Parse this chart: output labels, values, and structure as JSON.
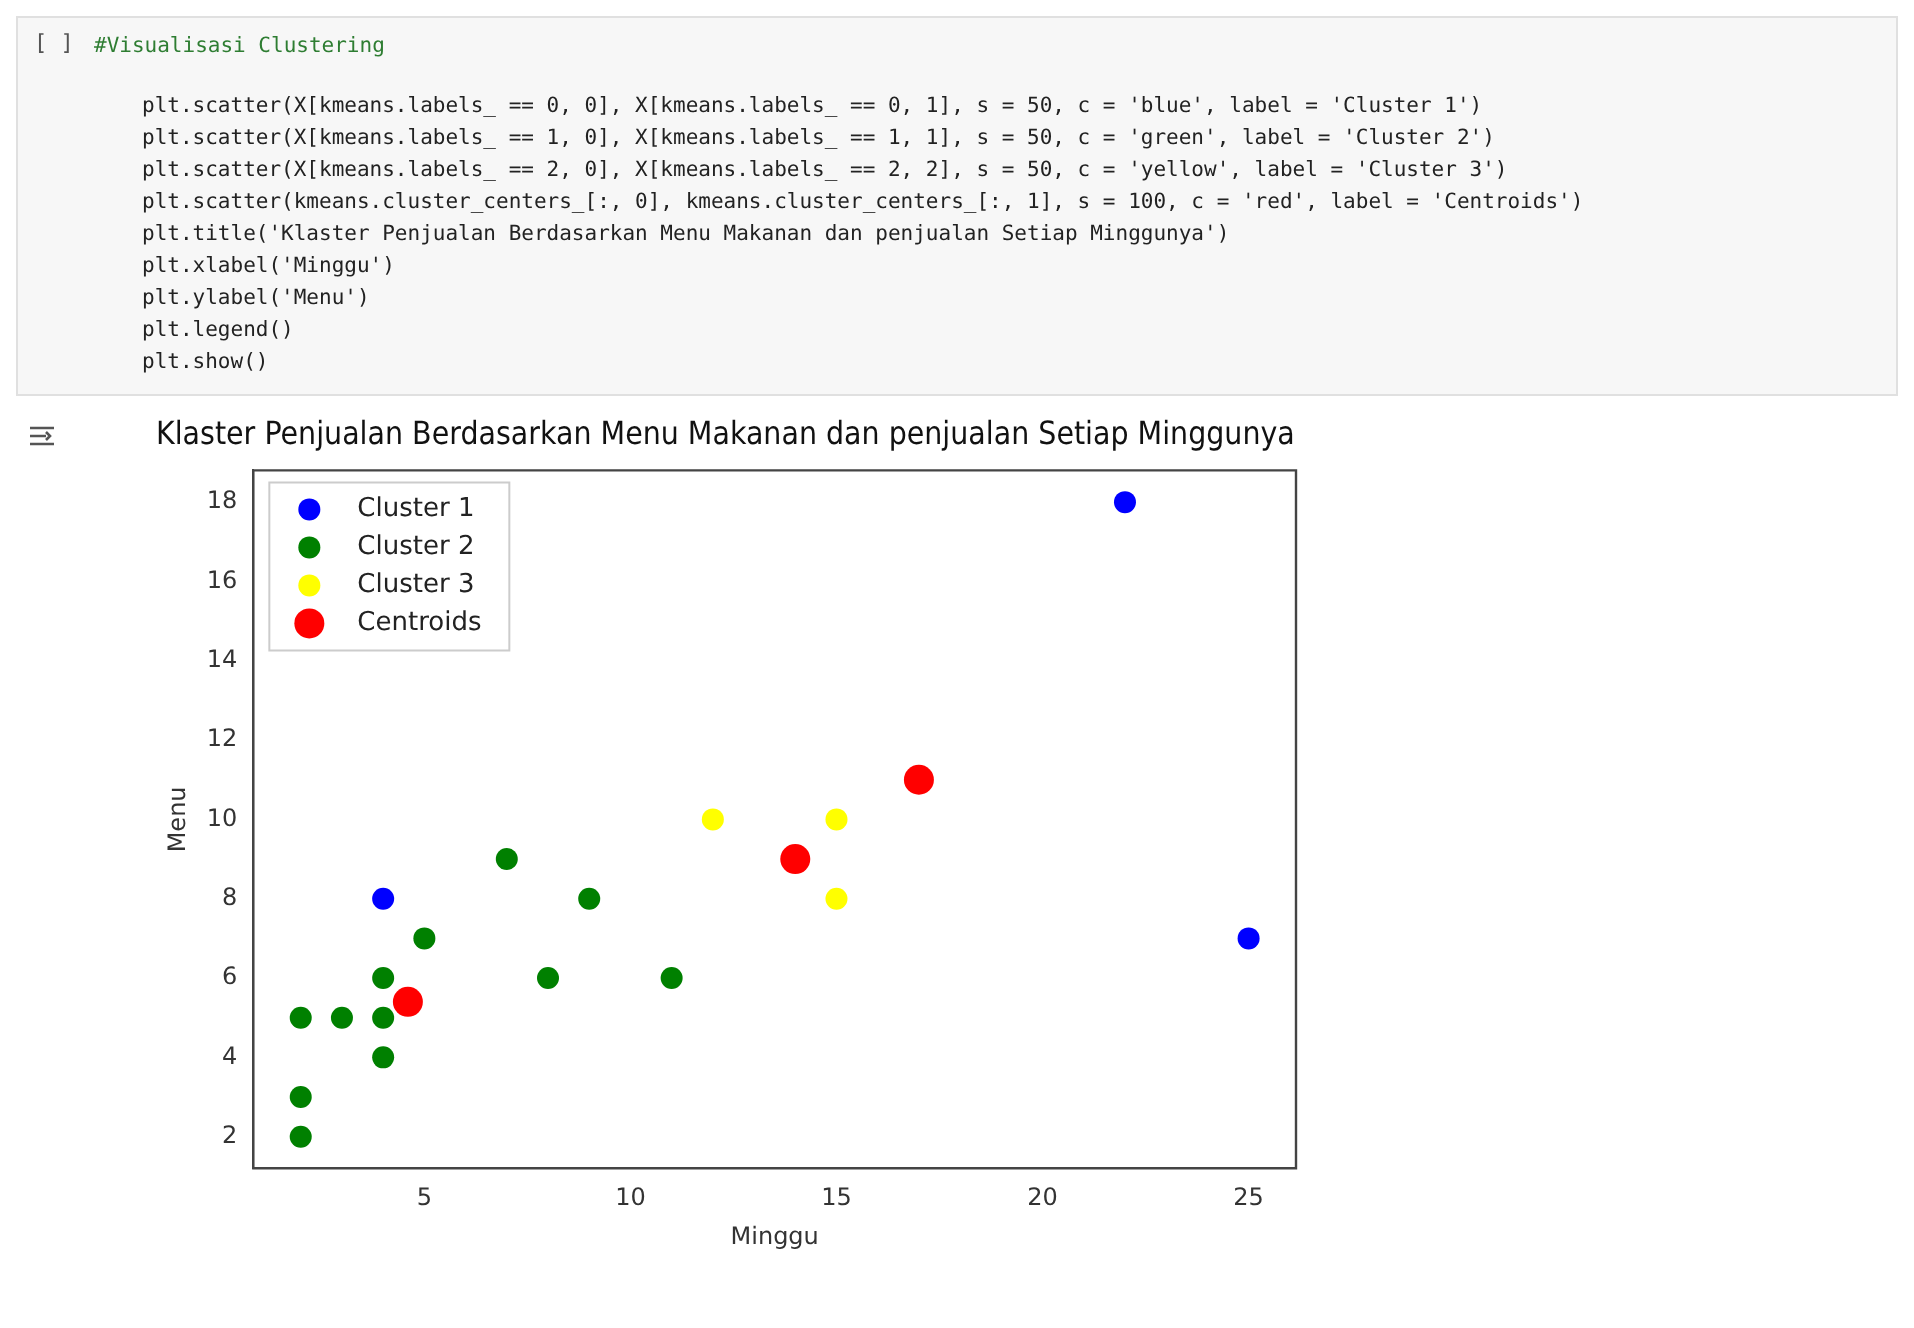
{
  "chart_data": {
    "type": "scatter",
    "title": "Klaster Penjualan Berdasarkan Menu Makanan dan penjualan Setiap Minggunya",
    "xlabel": "Minggu",
    "ylabel": "Menu",
    "annotations": [
      "[ ]",
      "#Visualisasi Clustering",
      "plt.scatter(X[kmeans.labels_ == 0, 0], X[kmeans.labels_ == 0, 1], s = 50, c = 'blue', label = 'Cluster 1')",
      "plt.scatter(X[kmeans.labels_ == 1, 0], X[kmeans.labels_ == 1, 1], s = 50, c = 'green', label = 'Cluster 2')",
      "plt.scatter(X[kmeans.labels_ == 2, 0], X[kmeans.labels_ == 2, 2], s = 50, c = 'yellow', label = 'Cluster 3')",
      "plt.scatter(kmeans.cluster_centers_[:, 0], kmeans.cluster_centers_[:, 1], s = 100, c = 'red', label = 'Centroids')",
      "plt.title('Klaster Penjualan Berdasarkan Menu Makanan dan penjualan Setiap Minggunya')",
      "plt.xlabel('Minggu')",
      "plt.ylabel('Menu')",
      "plt.legend()",
      "plt.show()"
    ],
    "series": [
      {
        "name": "Cluster 1",
        "color": "#0000ff",
        "x": [
          4,
          22,
          25
        ],
        "values": [
          8,
          18,
          7
        ]
      },
      {
        "name": "Cluster 2",
        "color": "#008000",
        "x": [
          2,
          3,
          4,
          4,
          4,
          2,
          2,
          5,
          7,
          8,
          9,
          11
        ],
        "values": [
          5,
          5,
          6,
          5,
          4,
          3,
          2,
          7,
          9,
          6,
          8,
          6
        ]
      },
      {
        "name": "Cluster 3",
        "color": "#ffff00",
        "x": [
          12,
          15,
          15
        ],
        "values": [
          10,
          10,
          8
        ]
      },
      {
        "name": "Centroids",
        "color": "#ff0000",
        "x": [
          4.6,
          14,
          17
        ],
        "values": [
          5.4,
          9,
          11
        ]
      }
    ],
    "xlim": [
      0.85,
      26.15
    ],
    "ylim": [
      1.2,
      18.8
    ],
    "xticks": [
      5,
      10,
      15,
      20,
      25
    ],
    "yticks": [
      2,
      4,
      6,
      8,
      10,
      12,
      14,
      16,
      18
    ],
    "grid": false,
    "legend": "top left",
    "marker": "circle"
  }
}
